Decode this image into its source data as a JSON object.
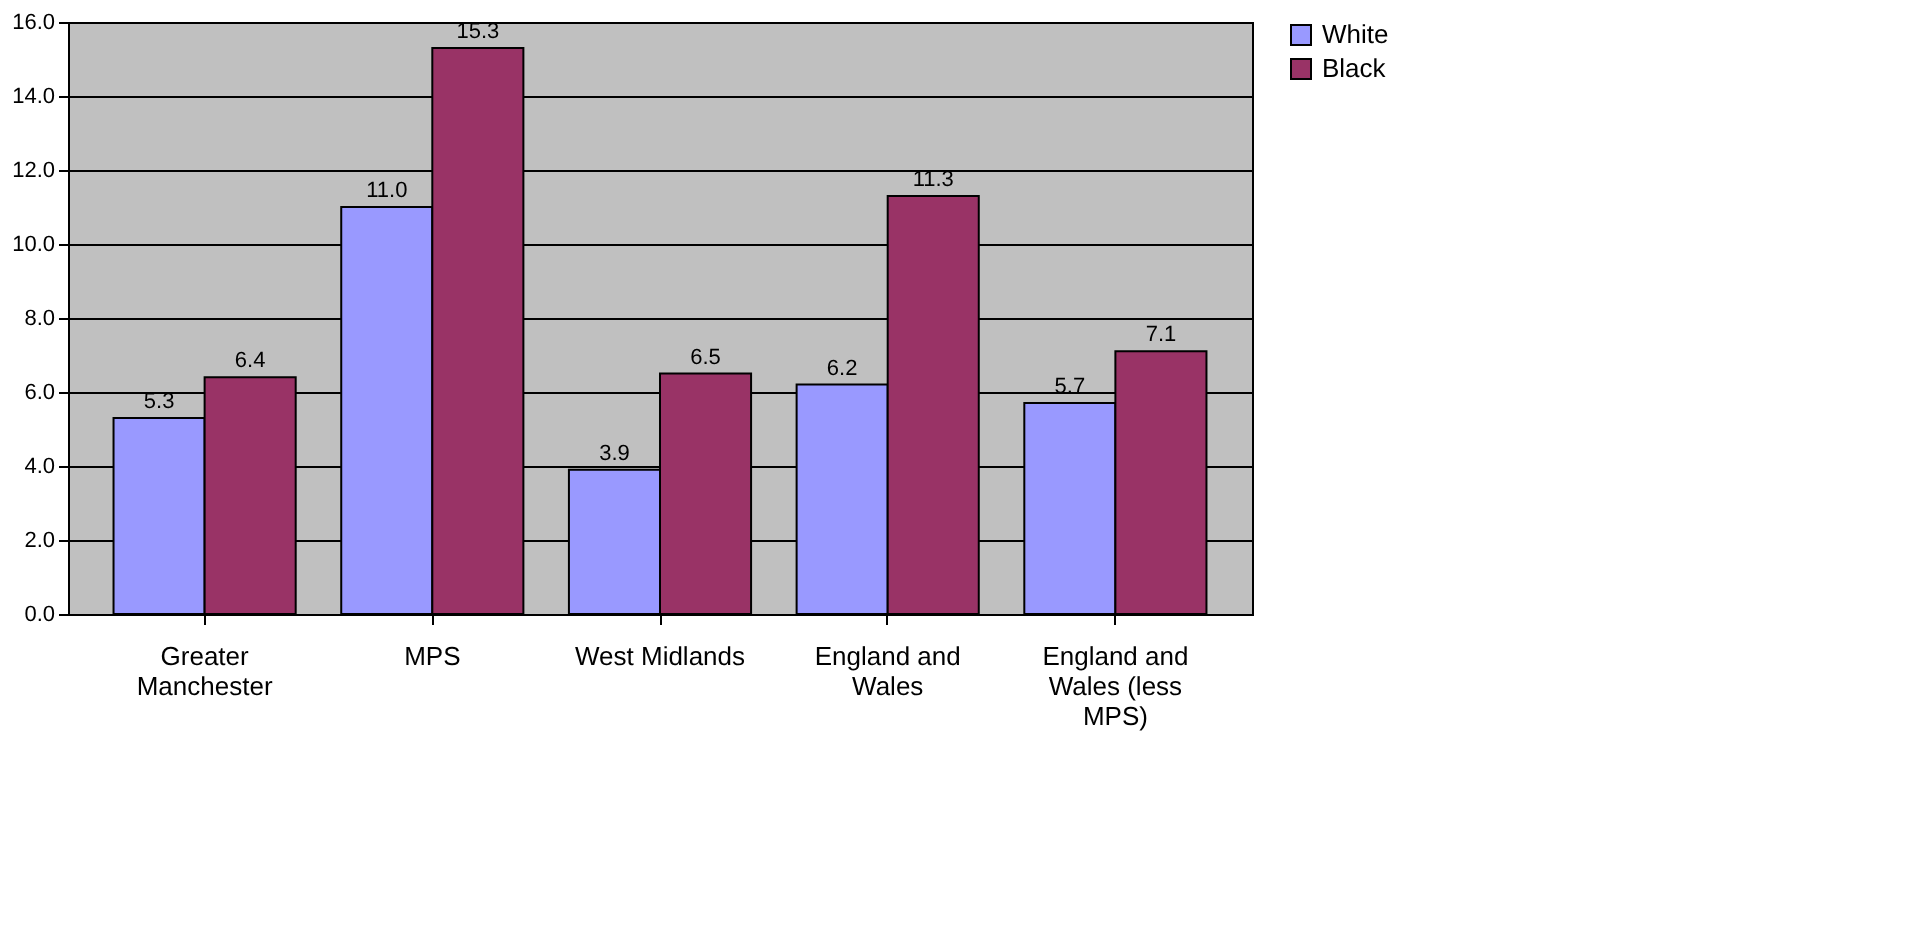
{
  "chart_data": {
    "type": "bar",
    "categories": [
      "Greater Manchester",
      "MPS",
      "West Midlands",
      "England and Wales",
      "England and Wales (less MPS)"
    ],
    "series": [
      {
        "name": "White",
        "color": "#9999ff",
        "values": [
          5.3,
          11.0,
          3.9,
          6.2,
          5.7
        ],
        "value_labels": [
          "5.3",
          "11.0",
          "3.9",
          "6.2",
          "5.7"
        ]
      },
      {
        "name": "Black",
        "color": "#993366",
        "values": [
          6.4,
          15.3,
          6.5,
          11.3,
          7.1
        ],
        "value_labels": [
          "6.4",
          "15.3",
          "6.5",
          "11.3",
          "7.1"
        ]
      }
    ],
    "ylim": [
      0,
      16
    ],
    "yticks": [
      {
        "value": 0,
        "label": "0.0"
      },
      {
        "value": 2,
        "label": "2.0"
      },
      {
        "value": 4,
        "label": "4.0"
      },
      {
        "value": 6,
        "label": "6.0"
      },
      {
        "value": 8,
        "label": "8.0"
      },
      {
        "value": 10,
        "label": "10.0"
      },
      {
        "value": 12,
        "label": "12.0"
      },
      {
        "value": 14,
        "label": "14.0"
      },
      {
        "value": 16,
        "label": "16.0"
      }
    ],
    "grid": "y",
    "legend": "right"
  }
}
